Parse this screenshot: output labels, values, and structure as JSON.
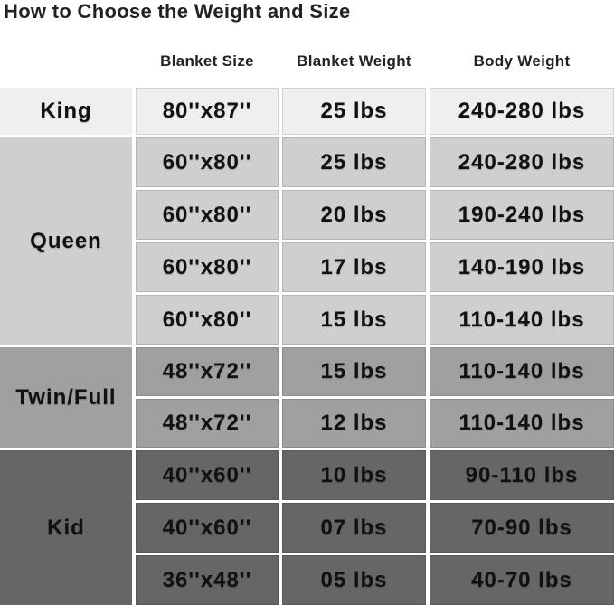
{
  "title": "How to Choose the Weight and Size",
  "headers": {
    "size": "Blanket Size",
    "weight": "Blanket Weight",
    "body": "Body Weight"
  },
  "groups": [
    {
      "label": "King",
      "color": "#efefef",
      "rows": [
        {
          "size": "80''x87''",
          "weight": "25 lbs",
          "body": "240-280 lbs"
        }
      ]
    },
    {
      "label": "Queen",
      "color": "#cfcfcf",
      "rows": [
        {
          "size": "60''x80''",
          "weight": "25 lbs",
          "body": "240-280 lbs"
        },
        {
          "size": "60''x80''",
          "weight": "20 lbs",
          "body": "190-240 lbs"
        },
        {
          "size": "60''x80''",
          "weight": "17 lbs",
          "body": "140-190 lbs"
        },
        {
          "size": "60''x80''",
          "weight": "15 lbs",
          "body": "110-140 lbs"
        }
      ]
    },
    {
      "label": "Twin/Full",
      "color": "#a0a0a0",
      "rows": [
        {
          "size": "48''x72''",
          "weight": "15 lbs",
          "body": "110-140 lbs"
        },
        {
          "size": "48''x72''",
          "weight": "12 lbs",
          "body": "110-140 lbs"
        }
      ]
    },
    {
      "label": "Kid",
      "color": "#666666",
      "rows": [
        {
          "size": "40''x60''",
          "weight": "10 lbs",
          "body": "90-110 lbs"
        },
        {
          "size": "40''x60''",
          "weight": "07 lbs",
          "body": "70-90 lbs"
        },
        {
          "size": "36''x48''",
          "weight": "05 lbs",
          "body": "40-70 lbs"
        }
      ]
    }
  ]
}
